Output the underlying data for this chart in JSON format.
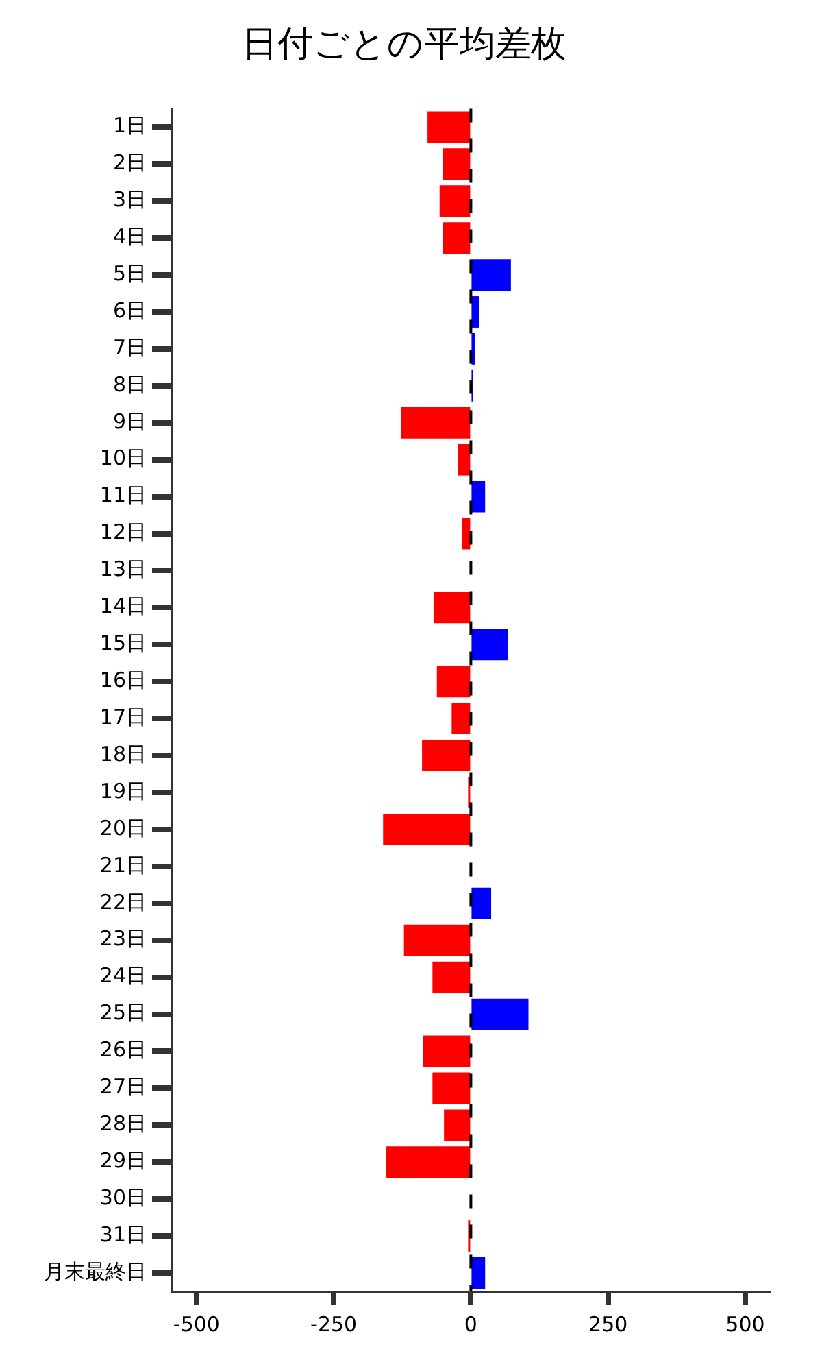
{
  "chart_data": {
    "type": "bar",
    "orientation": "horizontal",
    "title": "日付ごとの平均差枚",
    "categories": [
      "1日",
      "2日",
      "3日",
      "4日",
      "5日",
      "6日",
      "7日",
      "8日",
      "9日",
      "10日",
      "11日",
      "12日",
      "13日",
      "14日",
      "15日",
      "16日",
      "17日",
      "18日",
      "19日",
      "20日",
      "21日",
      "22日",
      "23日",
      "24日",
      "25日",
      "26日",
      "27日",
      "28日",
      "29日",
      "30日",
      "31日",
      "月末最終日"
    ],
    "values": [
      -79,
      -51,
      -57,
      -51,
      73,
      15,
      7,
      4,
      -127,
      -24,
      26,
      -16,
      0,
      -68,
      67,
      -62,
      -35,
      -89,
      -5,
      -160,
      0,
      37,
      -122,
      -70,
      105,
      -87,
      -70,
      -49,
      -154,
      0,
      -5,
      26
    ],
    "colors": [
      "#ff0000",
      "#ff0000",
      "#ff0000",
      "#ff0000",
      "#0000ff",
      "#0000ff",
      "#0000ff",
      "#0000ff",
      "#ff0000",
      "#ff0000",
      "#0000ff",
      "#ff0000",
      "#ff0000",
      "#ff0000",
      "#0000ff",
      "#ff0000",
      "#ff0000",
      "#ff0000",
      "#ff0000",
      "#ff0000",
      "#ff0000",
      "#0000ff",
      "#ff0000",
      "#ff0000",
      "#0000ff",
      "#ff0000",
      "#ff0000",
      "#ff0000",
      "#ff0000",
      "#ff0000",
      "#ff0000",
      "#0000ff"
    ],
    "xlim": [
      -546,
      545
    ],
    "xticks": [
      -500,
      -250,
      0,
      250,
      500
    ],
    "ref_lines": [
      {
        "axis": "x",
        "value": 0,
        "color": "#000000",
        "line_style": "dashed"
      }
    ],
    "grid": false,
    "legend": false
  }
}
